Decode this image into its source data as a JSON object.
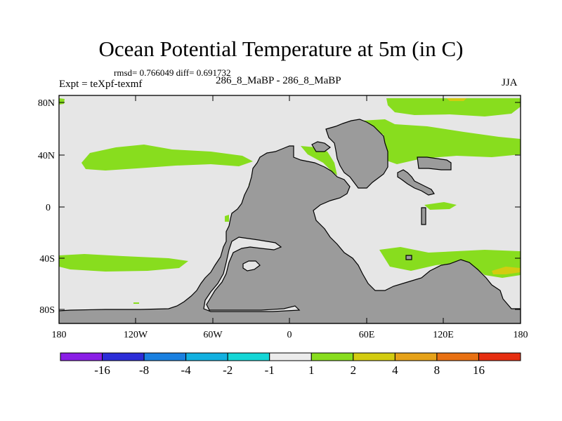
{
  "title": "Ocean Potential Temperature at 5m (in C)",
  "stats": "rmsd= 0.766049 diff= 0.691732",
  "experiment": "Expt = teXpf-texmf",
  "case": "286_8_MaBP - 286_8_MaBP",
  "season": "JJA",
  "lat_labels": [
    "80N",
    "40N",
    "0",
    "40S",
    "80S"
  ],
  "lon_labels": [
    "180",
    "120W",
    "60W",
    "0",
    "60E",
    "120E",
    "180"
  ],
  "colors": {
    "ocean_neutral": "#e6e6e6",
    "land": "#9b9b9b",
    "warm_1_2": "#88dd1e",
    "warm_2_4": "#d3cc10"
  },
  "colorbar": {
    "colors": [
      "#8a1ee6",
      "#2c2dd8",
      "#1a80e0",
      "#12b0e0",
      "#14d6d6",
      "#ececec",
      "#88dd1e",
      "#d3cc10",
      "#e6a219",
      "#e87012",
      "#e62e10"
    ],
    "labels": [
      "-16",
      "-8",
      "-4",
      "-2",
      "-1",
      "1",
      "2",
      "4",
      "8",
      "16"
    ]
  }
}
